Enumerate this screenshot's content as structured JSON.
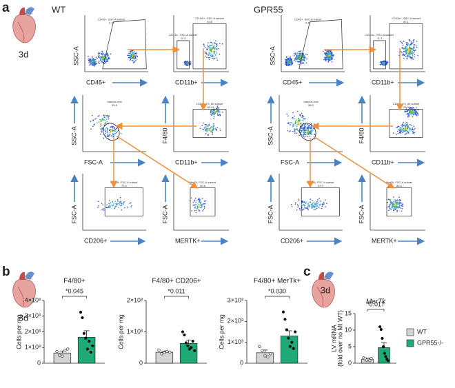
{
  "panel_labels": {
    "a": "a",
    "b": "b",
    "c": "c"
  },
  "time_a": "3d",
  "time_b": "3d",
  "time_c": "3d",
  "flow": [
    {
      "group": "WT",
      "plots": [
        {
          "y_label": "SSC-A",
          "x_label": "CD45+",
          "gates": [
            {
              "name": "CD45+, SSC-A subset",
              "value": "3.79"
            }
          ]
        },
        {
          "y_label": null,
          "x_label": "CD11b+",
          "gates": [
            {
              "name": "CD11b-, SSC-A subset",
              "value": "11.4"
            },
            {
              "name": "CD11b+, SSC-A subset",
              "value": "93.8"
            }
          ]
        },
        {
          "y_label": "SSC-A",
          "x_label": "FSC-A",
          "gates": [
            {
              "name": "macros-rest",
              "value": "53.8"
            }
          ]
        },
        {
          "y_label": "F4/80",
          "x_label": "CD11b+",
          "gates": [
            {
              "name": "CD11b, F4_80 subset",
              "value": "18.0"
            }
          ]
        },
        {
          "y_label": "FSC-A",
          "x_label": "CD206+",
          "gates": [
            {
              "name": "CD206, FSC-A subset",
              "value": "72.5"
            }
          ]
        },
        {
          "y_label": "FSC-A",
          "x_label": "MERTK+",
          "gates": [
            {
              "name": "MerTk, FSC-A subset",
              "value": "90.8"
            }
          ]
        }
      ]
    },
    {
      "group": "GPR55",
      "plots": [
        {
          "y_label": "SSC-A",
          "x_label": "CD45+",
          "gates": [
            {
              "name": "CD45+, SSC-A subset",
              "value": "4.34"
            }
          ]
        },
        {
          "y_label": null,
          "x_label": "CD11b+",
          "gates": [
            {
              "name": "CD11b-, SSC-A subset",
              "value": "11.3"
            },
            {
              "name": "CD11b+, SSC-A subset",
              "value": "87.1"
            }
          ]
        },
        {
          "y_label": "SSC-A",
          "x_label": "FSC-A",
          "gates": [
            {
              "name": "macros-rest",
              "value": "58.0"
            }
          ]
        },
        {
          "y_label": "F4/80",
          "x_label": "CD11b+",
          "gates": [
            {
              "name": "CD11b, F4_80 subset",
              "value": "21.7"
            }
          ]
        },
        {
          "y_label": "FSC-A",
          "x_label": "CD206+",
          "gates": [
            {
              "name": "CD206, FSC-A subset",
              "value": "37.0"
            }
          ]
        },
        {
          "y_label": "FSC-A",
          "x_label": "MERTK+",
          "gates": [
            {
              "name": "MerTk, FSC-A subset",
              "value": "84.6"
            }
          ]
        }
      ]
    }
  ],
  "legend": [
    {
      "name": "WT",
      "color": "#d4d4d4"
    },
    {
      "name": "GPR55-/-",
      "color": "#1faa78"
    }
  ],
  "chart_data": [
    {
      "type": "bar",
      "title": "F4/80+",
      "y_label": "Cells per mg",
      "annotation": "*0.045",
      "values": [
        650,
        1650
      ],
      "errors": [
        130,
        420
      ],
      "points": [
        [
          750,
          500,
          450,
          820,
          900
        ],
        [
          3250,
          2900,
          1900,
          1600,
          900,
          1400,
          700,
          1100
        ]
      ],
      "ylim": [
        0,
        4000
      ],
      "yticks": [
        0,
        {
          "value": 1000,
          "label": "1×10³"
        },
        {
          "value": 2000,
          "label": "2×10³"
        },
        {
          "value": 3000,
          "label": "3×10³"
        },
        {
          "value": 4000,
          "label": "4×10³"
        }
      ]
    },
    {
      "type": "bar",
      "title": "F4/80+ CD206+",
      "y_label": "Cells per mg",
      "annotation": "*0.011",
      "values": [
        350,
        630
      ],
      "errors": [
        40,
        110
      ],
      "points": [
        [
          420,
          300,
          330,
          380,
          350
        ],
        [
          1000,
          900,
          650,
          550,
          450,
          500,
          700,
          400
        ]
      ],
      "ylim": [
        0,
        2000
      ],
      "yticks": [
        0,
        {
          "value": 1000,
          "label": "1×10³"
        },
        {
          "value": 2000,
          "label": "2×10³"
        }
      ]
    },
    {
      "type": "bar",
      "title": "F4/80+ MerTk+",
      "y_label": "Cells per mg",
      "annotation": "*0.030",
      "values": [
        500,
        1300
      ],
      "errors": [
        130,
        250
      ],
      "points": [
        [
          800,
          600,
          350,
          300,
          450
        ],
        [
          2450,
          2100,
          1600,
          1200,
          800,
          1000,
          700,
          1500
        ]
      ],
      "ylim": [
        0,
        3000
      ],
      "yticks": [
        0,
        {
          "value": 1000,
          "label": "1×10³"
        },
        {
          "value": 2000,
          "label": "2×10³"
        },
        {
          "value": 3000,
          "label": "3×10³"
        }
      ]
    },
    {
      "type": "bar",
      "title": "MerTk",
      "y_label": "LV mRNA",
      "y_sublabel": "(fold over no MI WT)",
      "annotation": "*0.017",
      "values": [
        1.2,
        4.7
      ],
      "errors": [
        0.3,
        1.5
      ],
      "points": [
        [
          1.6,
          1.3,
          0.9,
          1.1,
          0.8,
          1.4
        ],
        [
          11,
          10.2,
          7.5,
          5,
          3,
          2,
          1.2,
          0.8
        ]
      ],
      "ylim": [
        0,
        15
      ],
      "yticks": [
        0,
        5,
        10,
        15
      ]
    }
  ]
}
